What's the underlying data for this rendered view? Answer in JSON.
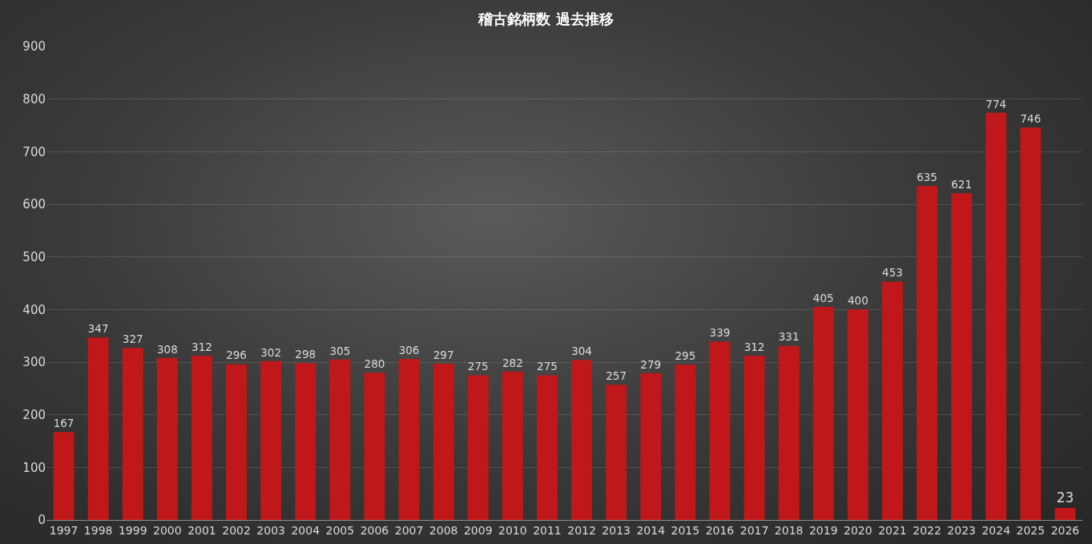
{
  "chart_data": {
    "type": "bar",
    "title": "稽古銘柄数 過去推移",
    "categories": [
      "1997",
      "1998",
      "1999",
      "2000",
      "2001",
      "2002",
      "2003",
      "2004",
      "2005",
      "2006",
      "2007",
      "2008",
      "2009",
      "2010",
      "2011",
      "2012",
      "2013",
      "2014",
      "2015",
      "2016",
      "2017",
      "2018",
      "2019",
      "2020",
      "2021",
      "2022",
      "2023",
      "2024",
      "2025",
      "2026"
    ],
    "values": [
      167,
      347,
      327,
      308,
      312,
      296,
      302,
      298,
      305,
      280,
      306,
      297,
      275,
      282,
      275,
      304,
      257,
      279,
      295,
      339,
      312,
      331,
      405,
      400,
      453,
      635,
      621,
      774,
      746,
      23
    ],
    "color": "#c0181a",
    "ylim": [
      0,
      900
    ],
    "yticks": [
      0,
      100,
      200,
      300,
      400,
      500,
      600,
      700,
      800,
      900
    ],
    "grid": "y",
    "data_labels": true,
    "legend": false
  }
}
